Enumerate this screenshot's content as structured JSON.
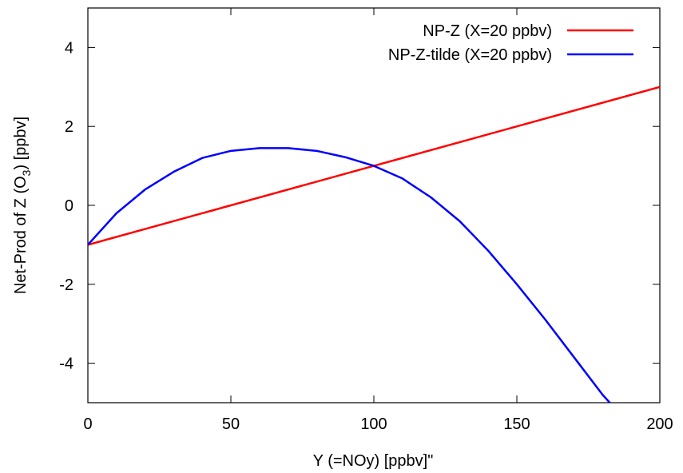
{
  "chart_data": {
    "type": "line",
    "xlabel": "Y (=NOy) [ppbv]\"",
    "ylabel": {
      "prefix": "Net-Prod of Z (O",
      "subscript": "3",
      "suffix": ") [ppbv]"
    },
    "xlim": [
      0,
      200
    ],
    "ylim": [
      -5,
      5
    ],
    "xticks": [
      0,
      50,
      100,
      150,
      200
    ],
    "xtick_labels": [
      "0",
      "50",
      "100",
      "150",
      "200"
    ],
    "yticks": [
      -4,
      -2,
      0,
      2,
      4
    ],
    "ytick_labels": [
      "-4",
      "-2",
      "0",
      "2",
      "4"
    ],
    "grid": false,
    "legend_position": "top-right",
    "series": [
      {
        "name": "NP-Z (X=20 ppbv)",
        "color": "#ff0000",
        "x": [
          0,
          50,
          100,
          150,
          200
        ],
        "y": [
          -1.0,
          0.0,
          1.0,
          2.0,
          3.0
        ]
      },
      {
        "name": "NP-Z-tilde (X=20 ppbv)",
        "color": "#0000ff",
        "x": [
          0,
          10,
          20,
          30,
          40,
          50,
          60,
          70,
          80,
          90,
          100,
          110,
          120,
          130,
          140,
          150,
          160,
          170,
          180,
          182.5
        ],
        "y": [
          -1.0,
          -0.2,
          0.4,
          0.85,
          1.2,
          1.38,
          1.45,
          1.45,
          1.38,
          1.22,
          1.0,
          0.68,
          0.2,
          -0.4,
          -1.15,
          -2.0,
          -2.9,
          -3.85,
          -4.8,
          -5.0
        ]
      }
    ]
  }
}
